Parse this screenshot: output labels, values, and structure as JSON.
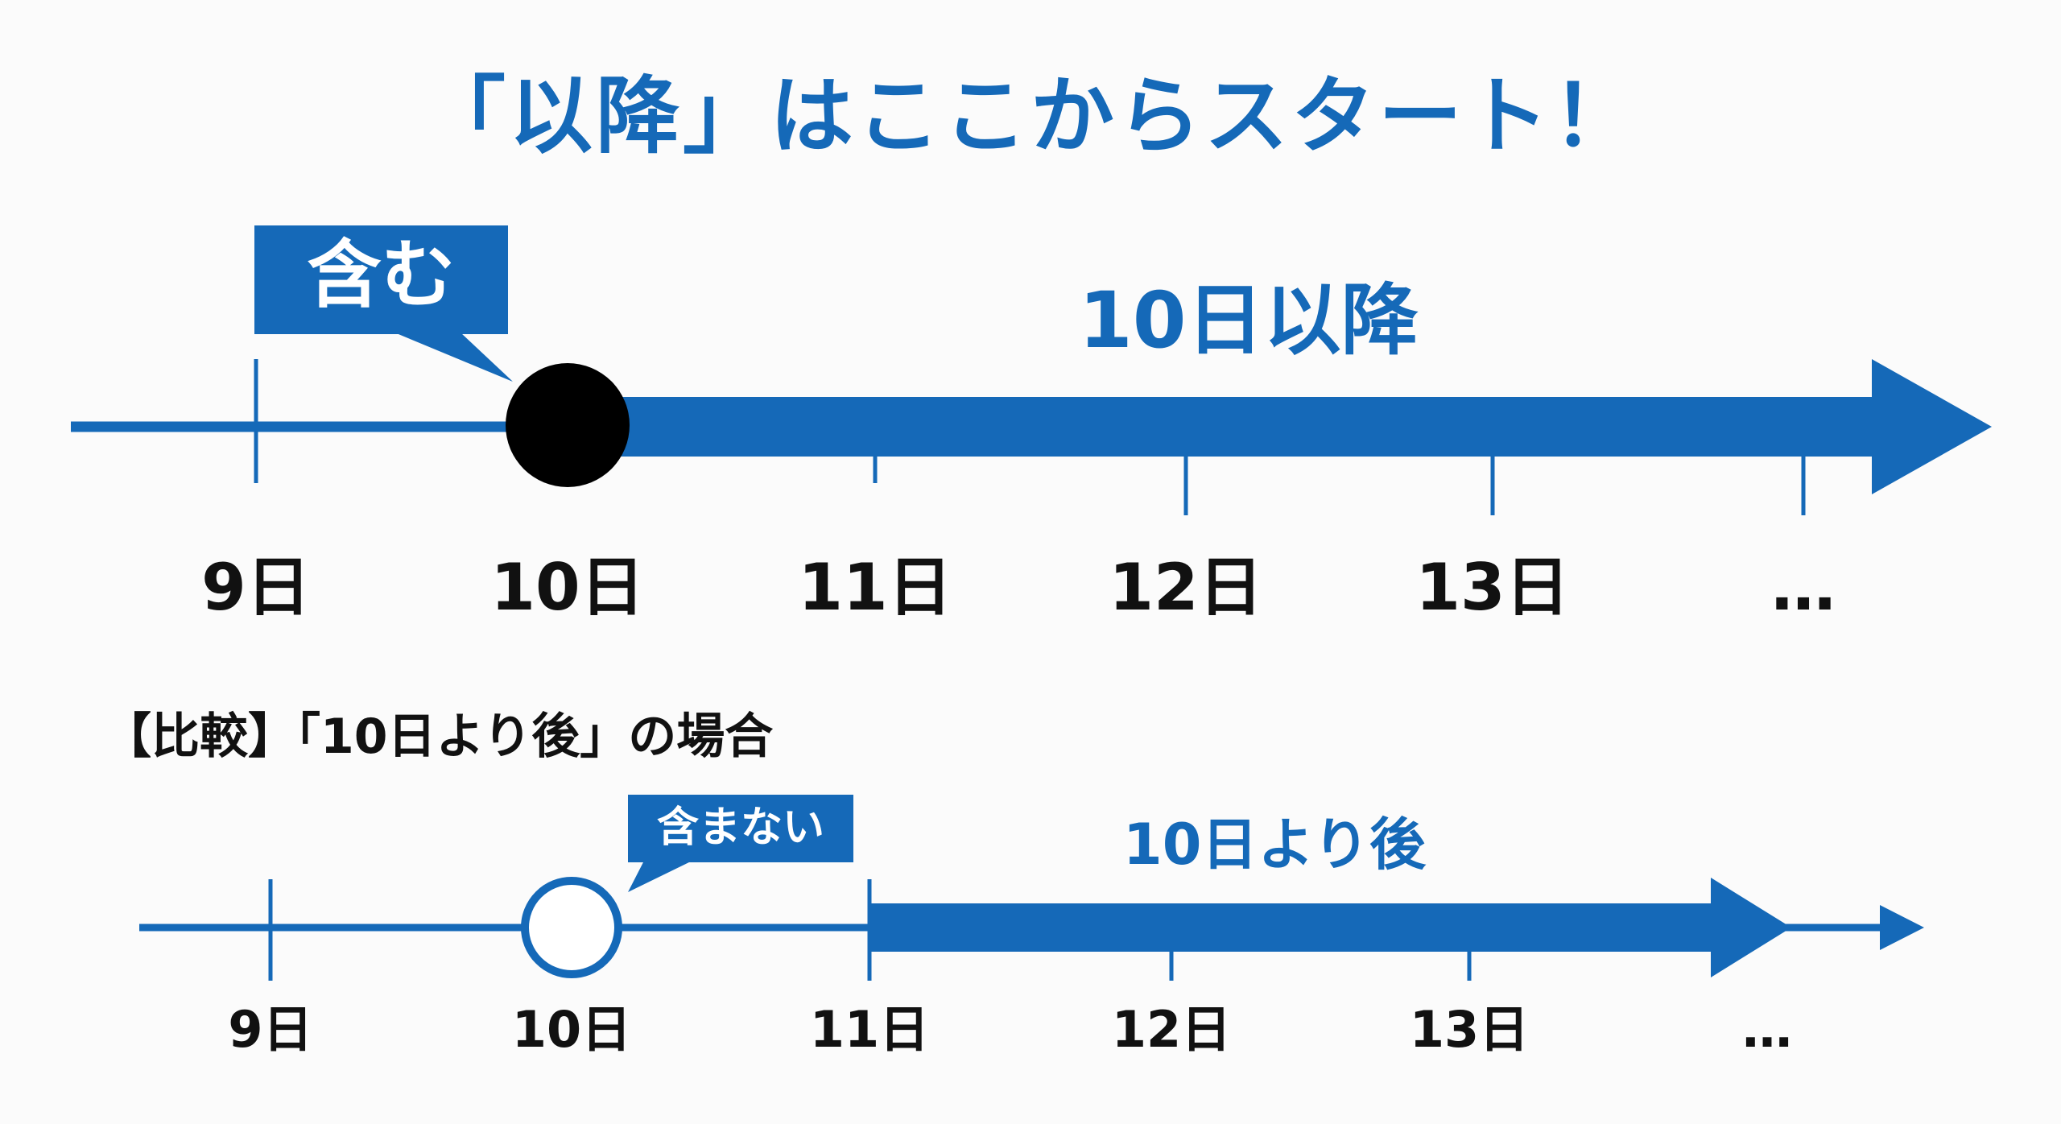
{
  "title": "「以降」はここからスタート！",
  "main_timeline": {
    "bubble_text": "含む",
    "range_label": "10日以降",
    "ticks": [
      "9日",
      "10日",
      "11日",
      "12日",
      "13日",
      "…"
    ]
  },
  "comparison": {
    "heading": "【比較】「10日より後」の場合",
    "bubble_text": "含まない",
    "range_label": "10日より後",
    "ticks": [
      "9日",
      "10日",
      "11日",
      "12日",
      "13日",
      "…"
    ]
  },
  "colors": {
    "accent_blue": "#1569b8",
    "text_black": "#111111",
    "marker_black": "#000000",
    "background": "#fbfbfb"
  }
}
